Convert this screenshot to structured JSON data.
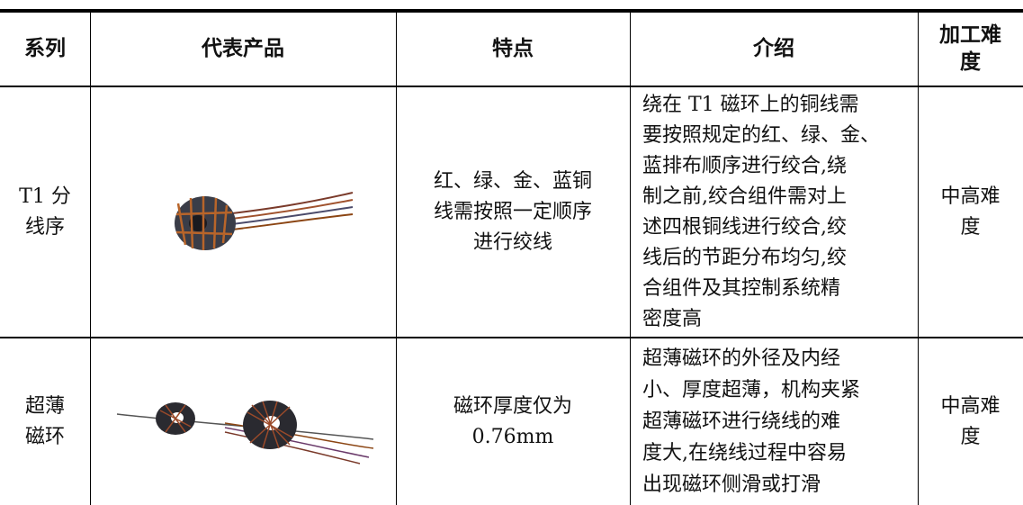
{
  "table": {
    "header": [
      [
        "系列"
      ],
      [
        "代表产品"
      ],
      [
        "特点"
      ],
      [
        "介绍"
      ],
      [
        "加工难",
        "度"
      ]
    ],
    "rows": [
      {
        "series": [
          "T1 分",
          "线序"
        ],
        "features": [
          "红、绿、金、蓝铜",
          "线需按照一定顺序",
          "进行绞线"
        ],
        "intro": [
          "绕在 T1 磁环上的铜线需",
          "要按照规定的红、绿、金、",
          "蓝排布顺序进行绞合,绕",
          "制之前,绞合组件需对上",
          "述四根铜线进行绞合,绞",
          "线后的节距分布均匀,绞",
          "合组件及其控制系统精",
          "密度高"
        ],
        "difficulty": [
          "中高难",
          "度"
        ]
      },
      {
        "series": [
          "超薄",
          "磁环"
        ],
        "features": [
          "磁环厚度仅为",
          "0.76mm"
        ],
        "intro": [
          "超薄磁环的外径及内经",
          "小、厚度超薄，机构夹紧",
          "超薄磁环进行绕线的难",
          "度大,在绕线过程中容易",
          "出现磁环侧滑或打滑"
        ],
        "difficulty": [
          "中高难",
          "度"
        ]
      }
    ]
  }
}
